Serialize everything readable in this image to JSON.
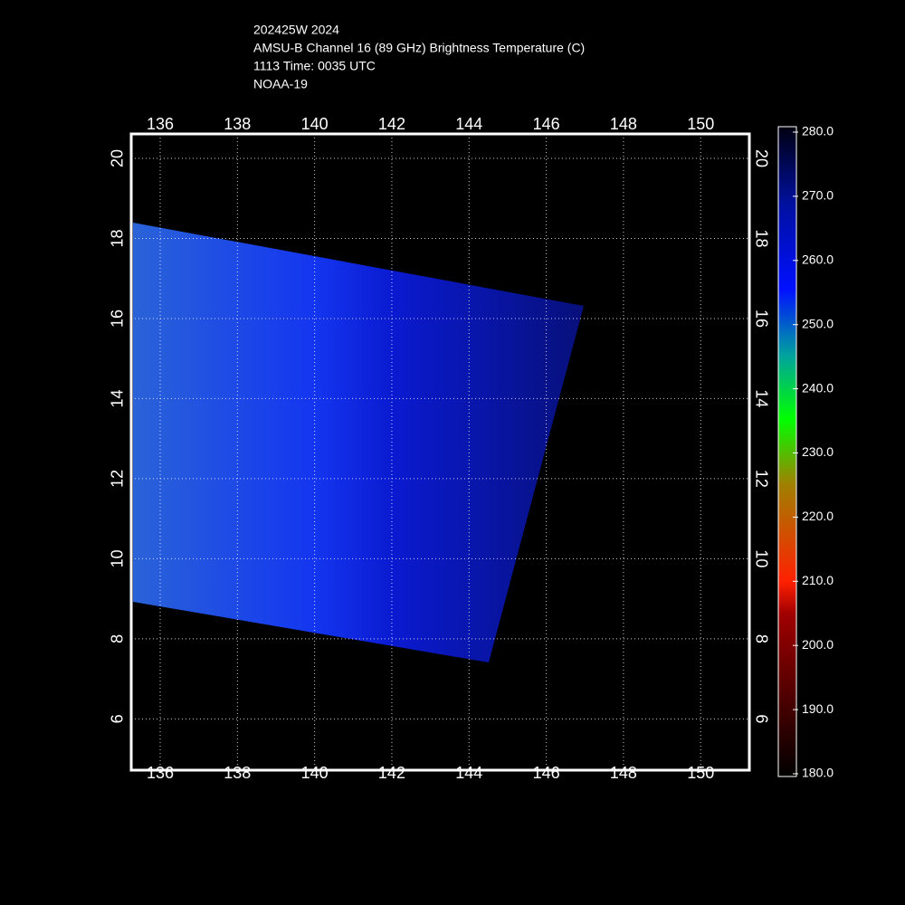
{
  "title_lines": [
    "202425W 2024",
    "AMSU-B Channel 16 (89 GHz) Brightness Temperature (C)",
    "1113 Time: 0035 UTC",
    "NOAA-19"
  ],
  "map": {
    "lonlim": [
      135.25,
      151.26
    ],
    "latlim": [
      4.72,
      20.61
    ],
    "lonticks": [
      136,
      138,
      140,
      142,
      144,
      146,
      148,
      150
    ],
    "latticks": [
      6,
      8,
      10,
      12,
      14,
      16,
      18,
      20
    ],
    "grid": true
  },
  "colorbar": {
    "lim": [
      180,
      280
    ],
    "ticks": [
      {
        "value": 180,
        "label": "180.0"
      },
      {
        "value": 190,
        "label": "190.0"
      },
      {
        "value": 200,
        "label": "200.0"
      },
      {
        "value": 210,
        "label": "210.0"
      },
      {
        "value": 220,
        "label": "220.0"
      },
      {
        "value": 230,
        "label": "230.0"
      },
      {
        "value": 240,
        "label": "240.0"
      },
      {
        "value": 250,
        "label": "250.0"
      },
      {
        "value": 260,
        "label": "260.0"
      },
      {
        "value": 270,
        "label": "270.0"
      },
      {
        "value": 280,
        "label": "280.0"
      }
    ]
  }
}
